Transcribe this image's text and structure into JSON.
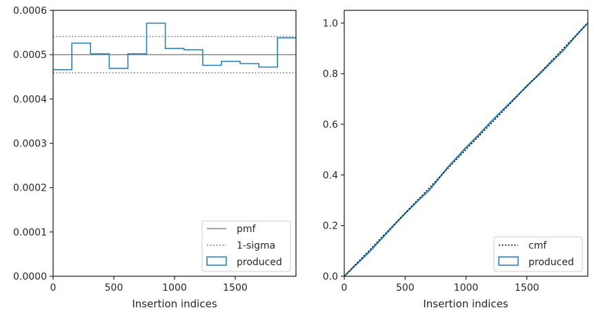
{
  "chart_data": [
    {
      "type": "histogram-step",
      "xlabel": "Insertion indices",
      "ylabel": "",
      "xlim": [
        0,
        2000
      ],
      "ylim": [
        0,
        0.0006
      ],
      "xticks": [
        0,
        500,
        1000,
        1500
      ],
      "xtick_labels": [
        "0",
        "500",
        "1000",
        "1500"
      ],
      "yticks": [
        0,
        0.0001,
        0.0002,
        0.0003,
        0.0004,
        0.0005,
        0.0006
      ],
      "ytick_labels": [
        "0.0000",
        "0.0001",
        "0.0002",
        "0.0003",
        "0.0004",
        "0.0005",
        "0.0006"
      ],
      "reference_lines": [
        {
          "name": "pmf",
          "value": 0.0005,
          "style": "solid",
          "color": "#808080"
        },
        {
          "name": "1-sigma",
          "value": 0.000541,
          "style": "dotted",
          "color": "#808080"
        },
        {
          "name": "1-sigma",
          "value": 0.000459,
          "style": "dotted",
          "color": "#808080"
        }
      ],
      "series": [
        {
          "name": "produced",
          "color": "#2b83ba",
          "bin_edges": [
            0,
            154,
            308,
            462,
            616,
            770,
            924,
            1078,
            1232,
            1386,
            1540,
            1694,
            1848,
            2000
          ],
          "values": [
            0.000466,
            0.000526,
            0.000502,
            0.000469,
            0.000502,
            0.000571,
            0.000514,
            0.000511,
            0.000476,
            0.000485,
            0.00048,
            0.000472,
            0.000538
          ]
        }
      ],
      "legend": {
        "placement": "lower-right",
        "entries": [
          "pmf",
          "1-sigma",
          "produced"
        ]
      },
      "grid": false
    },
    {
      "type": "line",
      "xlabel": "Insertion indices",
      "ylabel": "",
      "xlim": [
        0,
        2000
      ],
      "ylim": [
        0,
        1.05
      ],
      "xticks": [
        0,
        500,
        1000,
        1500
      ],
      "xtick_labels": [
        "0",
        "500",
        "1000",
        "1500"
      ],
      "yticks": [
        0,
        0.2,
        0.4,
        0.6,
        0.8,
        1.0
      ],
      "ytick_labels": [
        "0.0",
        "0.2",
        "0.4",
        "0.6",
        "0.8",
        "1.0"
      ],
      "series": [
        {
          "name": "cmf",
          "style": "dotted",
          "color": "#000000",
          "x": [
            0,
            2000
          ],
          "y": [
            0,
            1.0
          ]
        },
        {
          "name": "produced",
          "style": "solid",
          "color": "#2b83ba",
          "x": [
            0,
            100,
            200,
            300,
            400,
            500,
            600,
            700,
            770,
            850,
            1000,
            1100,
            1200,
            1300,
            1400,
            1500,
            1600,
            1700,
            1800,
            1900,
            2000
          ],
          "y": [
            0,
            0.047,
            0.093,
            0.145,
            0.197,
            0.248,
            0.296,
            0.341,
            0.382,
            0.43,
            0.508,
            0.556,
            0.608,
            0.656,
            0.703,
            0.752,
            0.797,
            0.845,
            0.893,
            0.948,
            1.0
          ]
        }
      ],
      "legend": {
        "placement": "lower-right",
        "entries": [
          "cmf",
          "produced"
        ]
      },
      "grid": false
    }
  ]
}
